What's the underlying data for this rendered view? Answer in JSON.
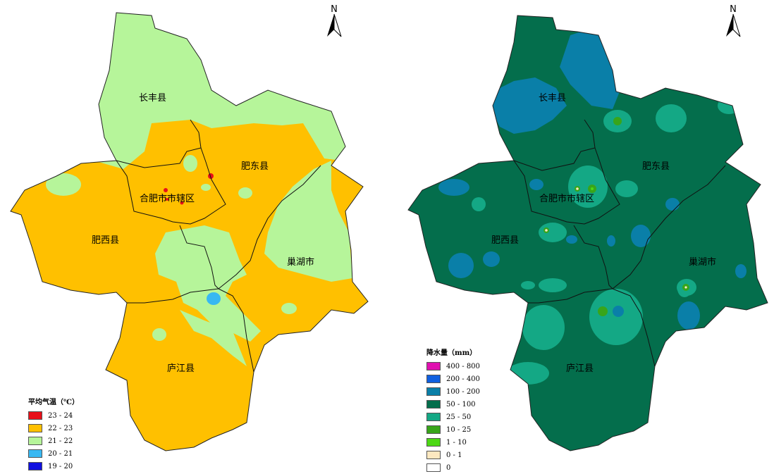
{
  "left_map": {
    "districts": {
      "changfeng": "长丰县",
      "feidong": "肥东县",
      "hefei_urban": "合肥市市辖区",
      "feixi": "肥西县",
      "chaohu": "巢湖市",
      "lujiang": "庐江县"
    },
    "legend": {
      "title": "平均气温（℃）",
      "items": [
        {
          "label": "23 - 24",
          "color": "#e8101a"
        },
        {
          "label": "22 - 23",
          "color": "#ffc000"
        },
        {
          "label": "21 - 22",
          "color": "#b6f59a"
        },
        {
          "label": "20 - 21",
          "color": "#38b8f2"
        },
        {
          "label": "19 - 20",
          "color": "#1010e0"
        }
      ]
    },
    "north": "N"
  },
  "right_map": {
    "districts": {
      "changfeng": "长丰县",
      "feidong": "肥东县",
      "hefei_urban": "合肥市市辖区",
      "feixi": "肥西县",
      "chaohu": "巢湖市",
      "lujiang": "庐江县"
    },
    "legend": {
      "title": "降水量（mm）",
      "items": [
        {
          "label": "400 - 800",
          "color": "#e010b0"
        },
        {
          "label": "200 - 400",
          "color": "#1060e0"
        },
        {
          "label": "100 - 200",
          "color": "#0a7fa8"
        },
        {
          "label": "50 - 100",
          "color": "#046e4c"
        },
        {
          "label": "25 - 50",
          "color": "#14a885"
        },
        {
          "label": "10 - 25",
          "color": "#38a51a"
        },
        {
          "label": "1 - 10",
          "color": "#4cd814"
        },
        {
          "label": "0 - 1",
          "color": "#fde8c0"
        },
        {
          "label": "0",
          "color": "#ffffff"
        }
      ]
    },
    "north": "N"
  }
}
